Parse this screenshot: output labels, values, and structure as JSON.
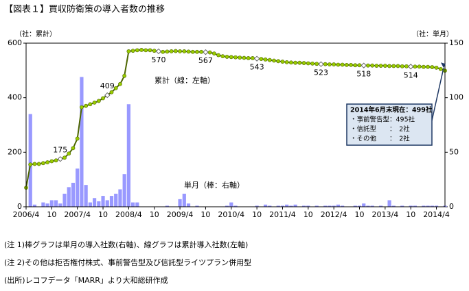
{
  "chart_data": {
    "type": "bar_line",
    "title": "【図表１】買収防衛策の導入者数の推移",
    "y_axis_label": "（社：累計）",
    "y2_axis_label": "（社：単月）",
    "categories": [
      "2006/4",
      null,
      null,
      null,
      null,
      null,
      "10",
      null,
      null,
      null,
      null,
      null,
      "2007/4",
      null,
      null,
      null,
      null,
      null,
      "10",
      null,
      null,
      null,
      null,
      null,
      "2008/4",
      null,
      null,
      null,
      null,
      null,
      "10",
      null,
      null,
      null,
      null,
      null,
      "2009/4",
      null,
      null,
      null,
      null,
      null,
      "10",
      null,
      null,
      null,
      null,
      null,
      "2010/4",
      null,
      null,
      null,
      null,
      null,
      "10",
      null,
      null,
      null,
      null,
      null,
      "2011/4",
      null,
      null,
      null,
      null,
      null,
      "10",
      null,
      null,
      null,
      null,
      null,
      "2012/4",
      null,
      null,
      null,
      null,
      null,
      "10",
      null,
      null,
      null,
      null,
      null,
      "2013/4",
      null,
      null,
      null,
      null,
      null,
      "10",
      null,
      null,
      null,
      null,
      null,
      "2014/4",
      null,
      null
    ],
    "series": [
      {
        "name": "単月（棒：右軸）",
        "kind": "bar",
        "axis": "y2",
        "color": "#9999ff",
        "values": [
          0,
          85,
          2,
          0,
          4,
          3,
          6,
          6,
          3,
          12,
          18,
          22,
          35,
          119,
          20,
          4,
          8,
          5,
          10,
          6,
          10,
          12,
          16,
          30,
          94,
          4,
          4,
          0,
          0,
          0,
          0,
          0,
          0,
          1,
          0,
          0,
          7,
          12,
          3,
          0,
          1,
          0,
          0,
          0,
          0,
          0,
          0,
          1,
          4,
          1,
          0,
          0,
          0,
          0,
          1,
          0,
          2,
          1,
          0,
          1,
          1,
          2,
          1,
          2,
          0,
          1,
          1,
          0,
          1,
          0,
          1,
          1,
          1,
          2,
          1,
          0,
          0,
          1,
          1,
          3,
          1,
          1,
          0,
          1,
          0,
          6,
          1,
          0,
          1,
          0,
          1,
          1,
          0,
          1,
          1,
          1,
          1,
          0,
          1
        ]
      },
      {
        "name": "累計（線：左軸）",
        "kind": "line",
        "axis": "y",
        "color": "#4d6600",
        "marker_color": "#99cc00",
        "values": [
          70,
          155,
          157,
          157,
          160,
          163,
          167,
          170,
          175,
          180,
          195,
          215,
          250,
          365,
          370,
          376,
          382,
          388,
          398,
          409,
          420,
          435,
          450,
          480,
          570,
          572,
          574,
          575,
          574,
          574,
          572,
          570,
          568,
          569,
          570,
          571,
          570,
          570,
          569,
          568,
          568,
          568,
          567,
          566,
          562,
          556,
          552,
          550,
          549,
          548,
          547,
          546,
          545,
          545,
          543,
          542,
          540,
          538,
          536,
          534,
          532,
          530,
          529,
          528,
          528,
          527,
          526,
          525,
          524,
          523,
          523,
          522,
          522,
          521,
          521,
          520,
          520,
          519,
          519,
          518,
          518,
          518,
          517,
          517,
          517,
          516,
          516,
          516,
          515,
          515,
          514,
          514,
          514,
          513,
          513,
          512,
          510,
          505,
          499
        ],
        "value_labels": [
          null,
          null,
          null,
          null,
          null,
          null,
          null,
          null,
          "175",
          null,
          null,
          null,
          null,
          null,
          null,
          null,
          null,
          null,
          null,
          "409",
          null,
          null,
          null,
          null,
          null,
          null,
          null,
          null,
          null,
          null,
          null,
          "570",
          null,
          null,
          null,
          null,
          null,
          null,
          null,
          null,
          null,
          null,
          "567",
          null,
          null,
          null,
          null,
          null,
          null,
          null,
          null,
          null,
          null,
          null,
          "543",
          null,
          null,
          null,
          null,
          null,
          null,
          null,
          null,
          null,
          null,
          null,
          null,
          null,
          null,
          "523",
          null,
          null,
          null,
          null,
          null,
          null,
          null,
          null,
          null,
          "518",
          null,
          null,
          null,
          null,
          null,
          null,
          null,
          null,
          null,
          null,
          "514",
          null,
          null,
          null,
          null,
          null,
          null,
          null,
          null
        ]
      }
    ],
    "ylim": [
      0,
      600
    ],
    "yticks": [
      0,
      200,
      400,
      600
    ],
    "y2lim": [
      0,
      150
    ],
    "y2ticks": [
      0,
      50,
      100,
      150
    ],
    "grid": false,
    "callout": [
      "2014年6月末現在：499社",
      "・事前警告型：495社",
      "・信託型　　：　2社",
      "・その他　　：　2社"
    ],
    "notes": [
      "(注 1)棒グラフは単月の導入社数(右軸)、線グラフは累計導入社数(左軸)",
      "(注 2)その他は拒否権付株式、事前警告型及び信託型ライツプラン併用型",
      "(出所)レコフデータ「MARR」より大和総研作成"
    ]
  }
}
